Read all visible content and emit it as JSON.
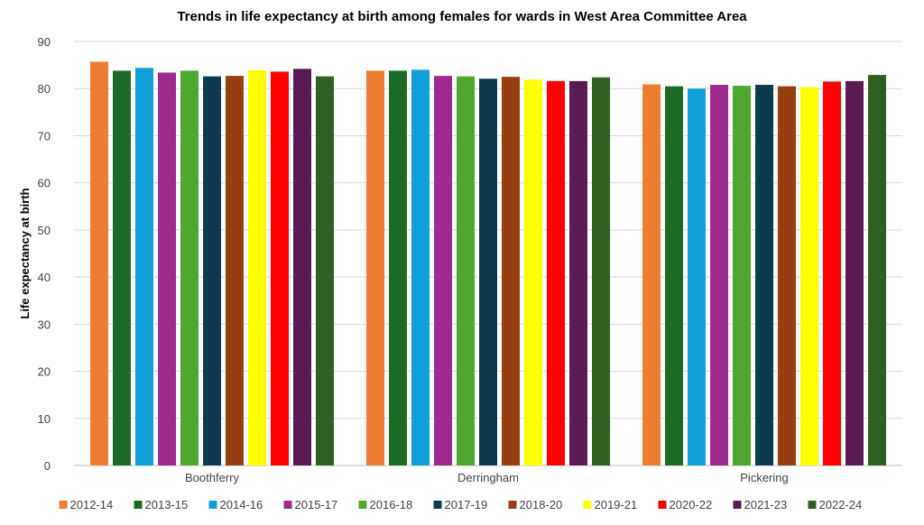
{
  "chart_data": {
    "type": "bar",
    "title": "Trends in life expectancy at birth among females for wards in West Area Committee Area",
    "xlabel": "",
    "ylabel": "Life expectancy at birth",
    "ylim": [
      0,
      90
    ],
    "yticks": [
      0,
      10,
      20,
      30,
      40,
      50,
      60,
      70,
      80,
      90
    ],
    "grid": true,
    "legend": "bottom",
    "categories": [
      "Boothferry",
      "Derringham",
      "Pickering"
    ],
    "series": [
      {
        "name": "2012-14",
        "color": "#ED7D31",
        "values": [
          85.7,
          83.8,
          80.9
        ]
      },
      {
        "name": "2013-15",
        "color": "#1B6B24",
        "values": [
          83.8,
          83.8,
          80.5
        ]
      },
      {
        "name": "2014-16",
        "color": "#119FD8",
        "values": [
          84.4,
          84.0,
          80.0
        ]
      },
      {
        "name": "2015-17",
        "color": "#9E2A8E",
        "values": [
          83.4,
          82.7,
          80.8
        ]
      },
      {
        "name": "2016-18",
        "color": "#4EA72E",
        "values": [
          83.8,
          82.6,
          80.6
        ]
      },
      {
        "name": "2017-19",
        "color": "#0E3A50",
        "values": [
          82.6,
          82.1,
          80.8
        ]
      },
      {
        "name": "2018-20",
        "color": "#953F12",
        "values": [
          82.7,
          82.5,
          80.5
        ]
      },
      {
        "name": "2019-21",
        "color": "#FFFF00",
        "values": [
          83.9,
          81.9,
          80.3
        ]
      },
      {
        "name": "2020-22",
        "color": "#FF0000",
        "values": [
          83.6,
          81.6,
          81.5
        ]
      },
      {
        "name": "2021-23",
        "color": "#5C1A54",
        "values": [
          84.2,
          81.6,
          81.6
        ]
      },
      {
        "name": "2022-24",
        "color": "#2E6020",
        "values": [
          82.6,
          82.4,
          82.9
        ]
      }
    ]
  }
}
